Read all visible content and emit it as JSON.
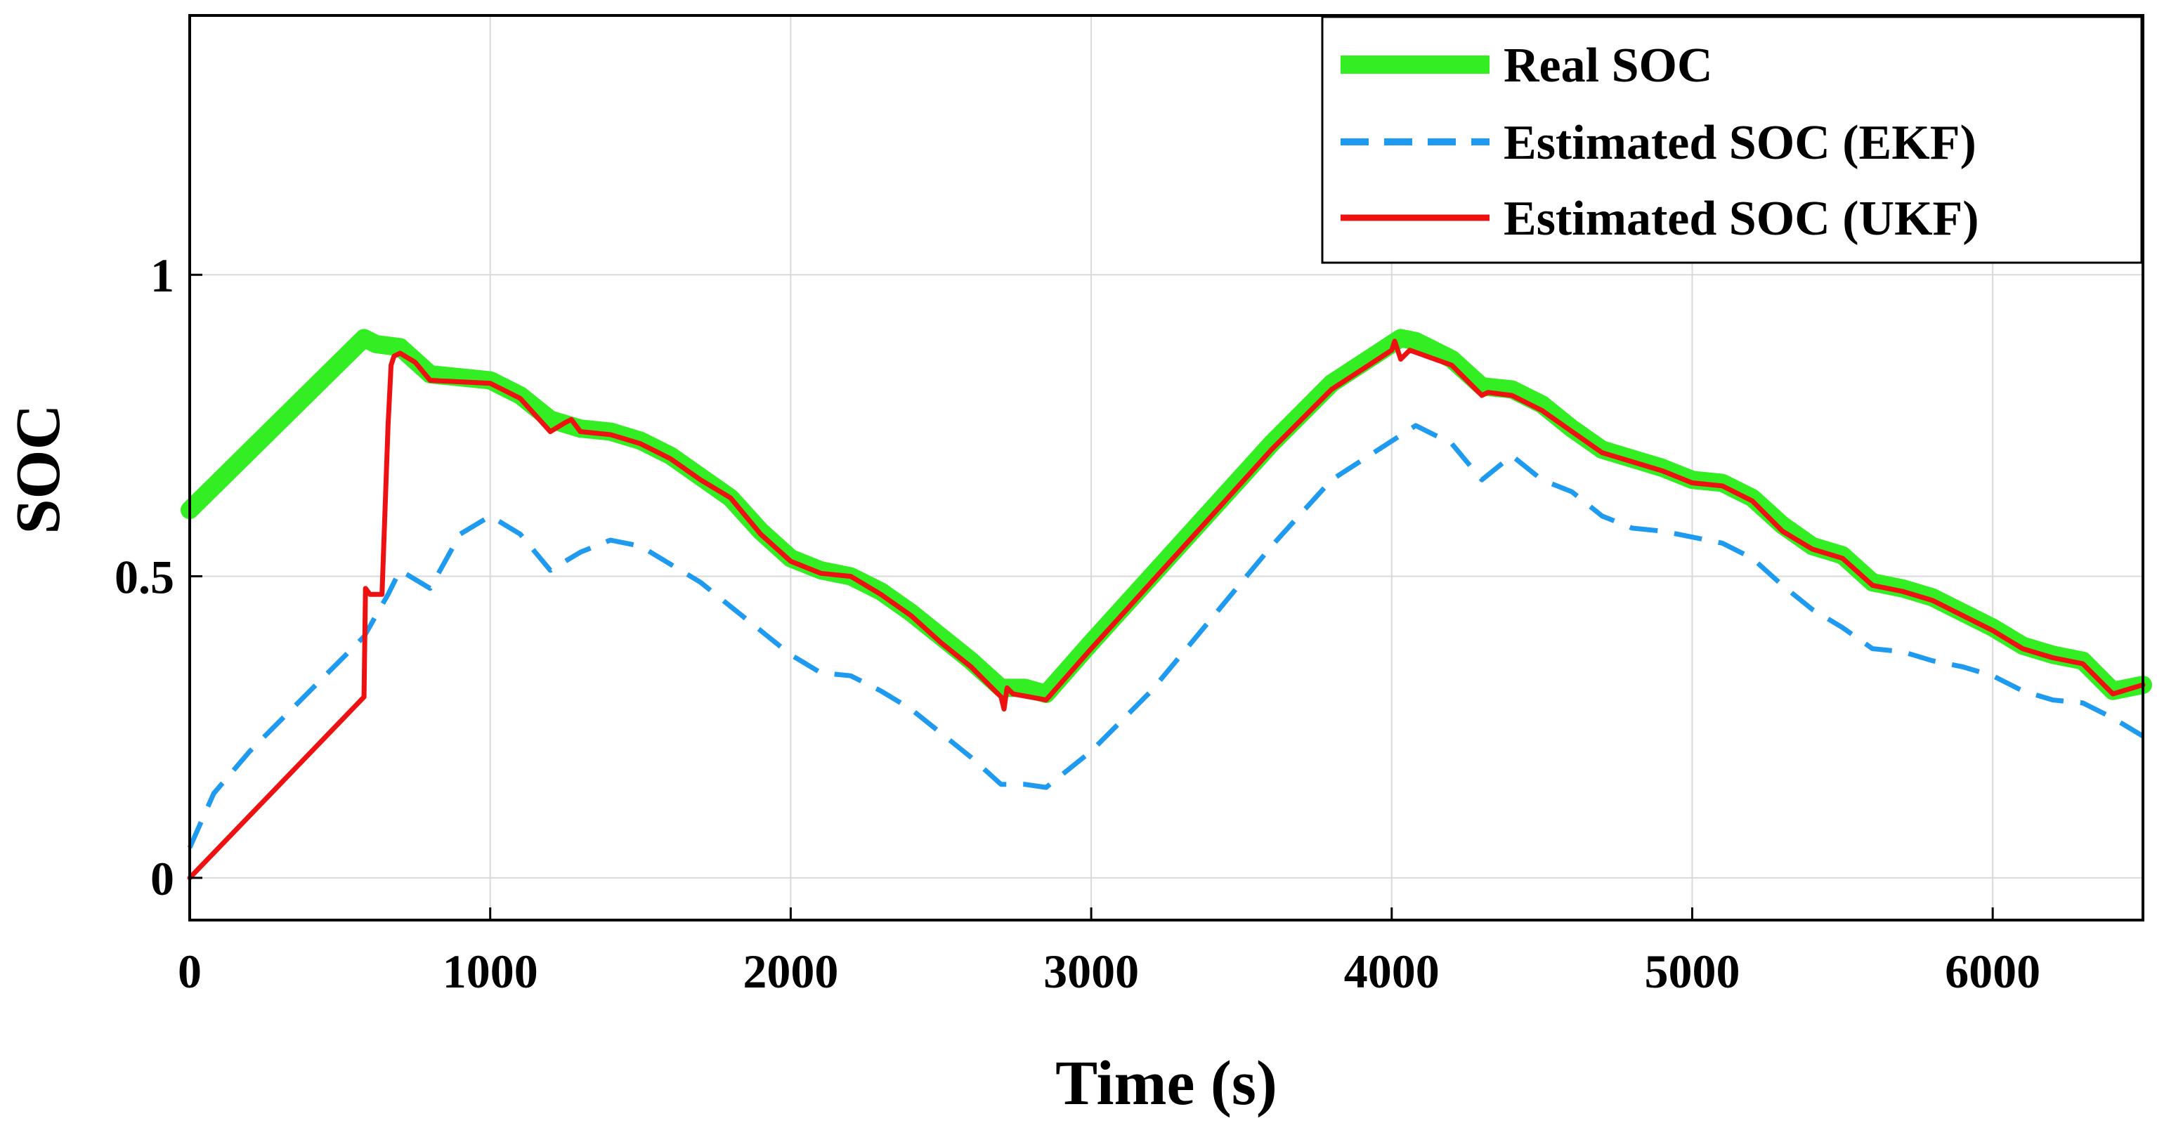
{
  "chart_data": {
    "type": "line",
    "title": "",
    "xlabel": "Time (s)",
    "ylabel": "SOC",
    "xlim": [
      0,
      6500
    ],
    "ylim": [
      -0.07,
      1.43
    ],
    "xticks": [
      0,
      1000,
      2000,
      3000,
      4000,
      5000,
      6000
    ],
    "xtick_labels": [
      "0",
      "1000",
      "2000",
      "3000",
      "4000",
      "5000",
      "6000"
    ],
    "yticks": [
      0,
      0.5,
      1
    ],
    "ytick_labels": [
      "0",
      "0.5",
      "1"
    ],
    "grid": true,
    "legend_position": "top-right",
    "series": [
      {
        "name": "Real SOC",
        "color": "#33ee22",
        "style": "solid-thick",
        "x": [
          0,
          580,
          620,
          700,
          800,
          1000,
          1100,
          1200,
          1300,
          1400,
          1500,
          1600,
          1700,
          1800,
          1900,
          2000,
          2100,
          2200,
          2300,
          2400,
          2500,
          2600,
          2700,
          2780,
          2850,
          3000,
          3200,
          3400,
          3600,
          3800,
          4030,
          4080,
          4200,
          4300,
          4400,
          4500,
          4600,
          4700,
          4800,
          4900,
          5000,
          5100,
          5200,
          5300,
          5400,
          5500,
          5600,
          5700,
          5800,
          5900,
          6000,
          6100,
          6200,
          6300,
          6400,
          6500
        ],
        "y": [
          0.61,
          0.895,
          0.885,
          0.88,
          0.835,
          0.825,
          0.8,
          0.76,
          0.745,
          0.74,
          0.725,
          0.7,
          0.665,
          0.63,
          0.575,
          0.53,
          0.51,
          0.5,
          0.475,
          0.44,
          0.4,
          0.36,
          0.315,
          0.315,
          0.305,
          0.39,
          0.5,
          0.61,
          0.72,
          0.82,
          0.895,
          0.89,
          0.86,
          0.815,
          0.81,
          0.785,
          0.745,
          0.71,
          0.695,
          0.68,
          0.66,
          0.655,
          0.63,
          0.585,
          0.55,
          0.535,
          0.49,
          0.48,
          0.465,
          0.44,
          0.415,
          0.385,
          0.37,
          0.36,
          0.31,
          0.32
        ]
      },
      {
        "name": "Estimated SOC (EKF)",
        "color": "#1e9bf0",
        "style": "dashed",
        "x": [
          0,
          80,
          200,
          400,
          580,
          660,
          700,
          800,
          900,
          1000,
          1100,
          1200,
          1300,
          1400,
          1500,
          1600,
          1700,
          1800,
          1900,
          2000,
          2100,
          2200,
          2300,
          2400,
          2500,
          2600,
          2700,
          2780,
          2850,
          3000,
          3200,
          3400,
          3600,
          3800,
          4080,
          4200,
          4300,
          4400,
          4500,
          4600,
          4700,
          4800,
          4900,
          5000,
          5100,
          5200,
          5300,
          5400,
          5500,
          5600,
          5700,
          5800,
          5900,
          6000,
          6100,
          6200,
          6300,
          6400,
          6500
        ],
        "y": [
          0.05,
          0.14,
          0.21,
          0.31,
          0.4,
          0.47,
          0.51,
          0.48,
          0.57,
          0.6,
          0.57,
          0.51,
          0.54,
          0.56,
          0.55,
          0.52,
          0.49,
          0.45,
          0.41,
          0.37,
          0.34,
          0.335,
          0.31,
          0.28,
          0.24,
          0.2,
          0.155,
          0.155,
          0.15,
          0.21,
          0.31,
          0.43,
          0.55,
          0.66,
          0.75,
          0.72,
          0.66,
          0.7,
          0.66,
          0.64,
          0.6,
          0.58,
          0.575,
          0.565,
          0.555,
          0.53,
          0.485,
          0.445,
          0.415,
          0.38,
          0.375,
          0.36,
          0.35,
          0.335,
          0.31,
          0.295,
          0.29,
          0.265,
          0.235
        ]
      },
      {
        "name": "Estimated SOC (UKF)",
        "color": "#ee1111",
        "style": "solid",
        "x": [
          0,
          580,
          585,
          600,
          640,
          660,
          670,
          680,
          700,
          750,
          800,
          1000,
          1100,
          1200,
          1250,
          1270,
          1300,
          1400,
          1500,
          1600,
          1700,
          1800,
          1900,
          2000,
          2100,
          2200,
          2300,
          2400,
          2500,
          2600,
          2700,
          2710,
          2720,
          2740,
          2850,
          3000,
          3200,
          3400,
          3600,
          3800,
          4000,
          4010,
          4030,
          4060,
          4200,
          4300,
          4320,
          4400,
          4500,
          4600,
          4700,
          4800,
          4900,
          5000,
          5100,
          5200,
          5300,
          5400,
          5500,
          5600,
          5700,
          5800,
          5900,
          6000,
          6100,
          6200,
          6300,
          6400,
          6500
        ],
        "y": [
          0.0,
          0.3,
          0.48,
          0.47,
          0.47,
          0.75,
          0.85,
          0.865,
          0.87,
          0.855,
          0.825,
          0.82,
          0.795,
          0.74,
          0.755,
          0.76,
          0.74,
          0.735,
          0.72,
          0.695,
          0.66,
          0.63,
          0.57,
          0.525,
          0.505,
          0.5,
          0.47,
          0.435,
          0.39,
          0.35,
          0.3,
          0.28,
          0.315,
          0.305,
          0.295,
          0.38,
          0.49,
          0.6,
          0.71,
          0.81,
          0.875,
          0.89,
          0.86,
          0.875,
          0.85,
          0.8,
          0.805,
          0.8,
          0.775,
          0.74,
          0.705,
          0.69,
          0.675,
          0.655,
          0.65,
          0.625,
          0.575,
          0.545,
          0.53,
          0.485,
          0.475,
          0.46,
          0.435,
          0.41,
          0.38,
          0.365,
          0.355,
          0.305,
          0.32
        ]
      }
    ]
  }
}
